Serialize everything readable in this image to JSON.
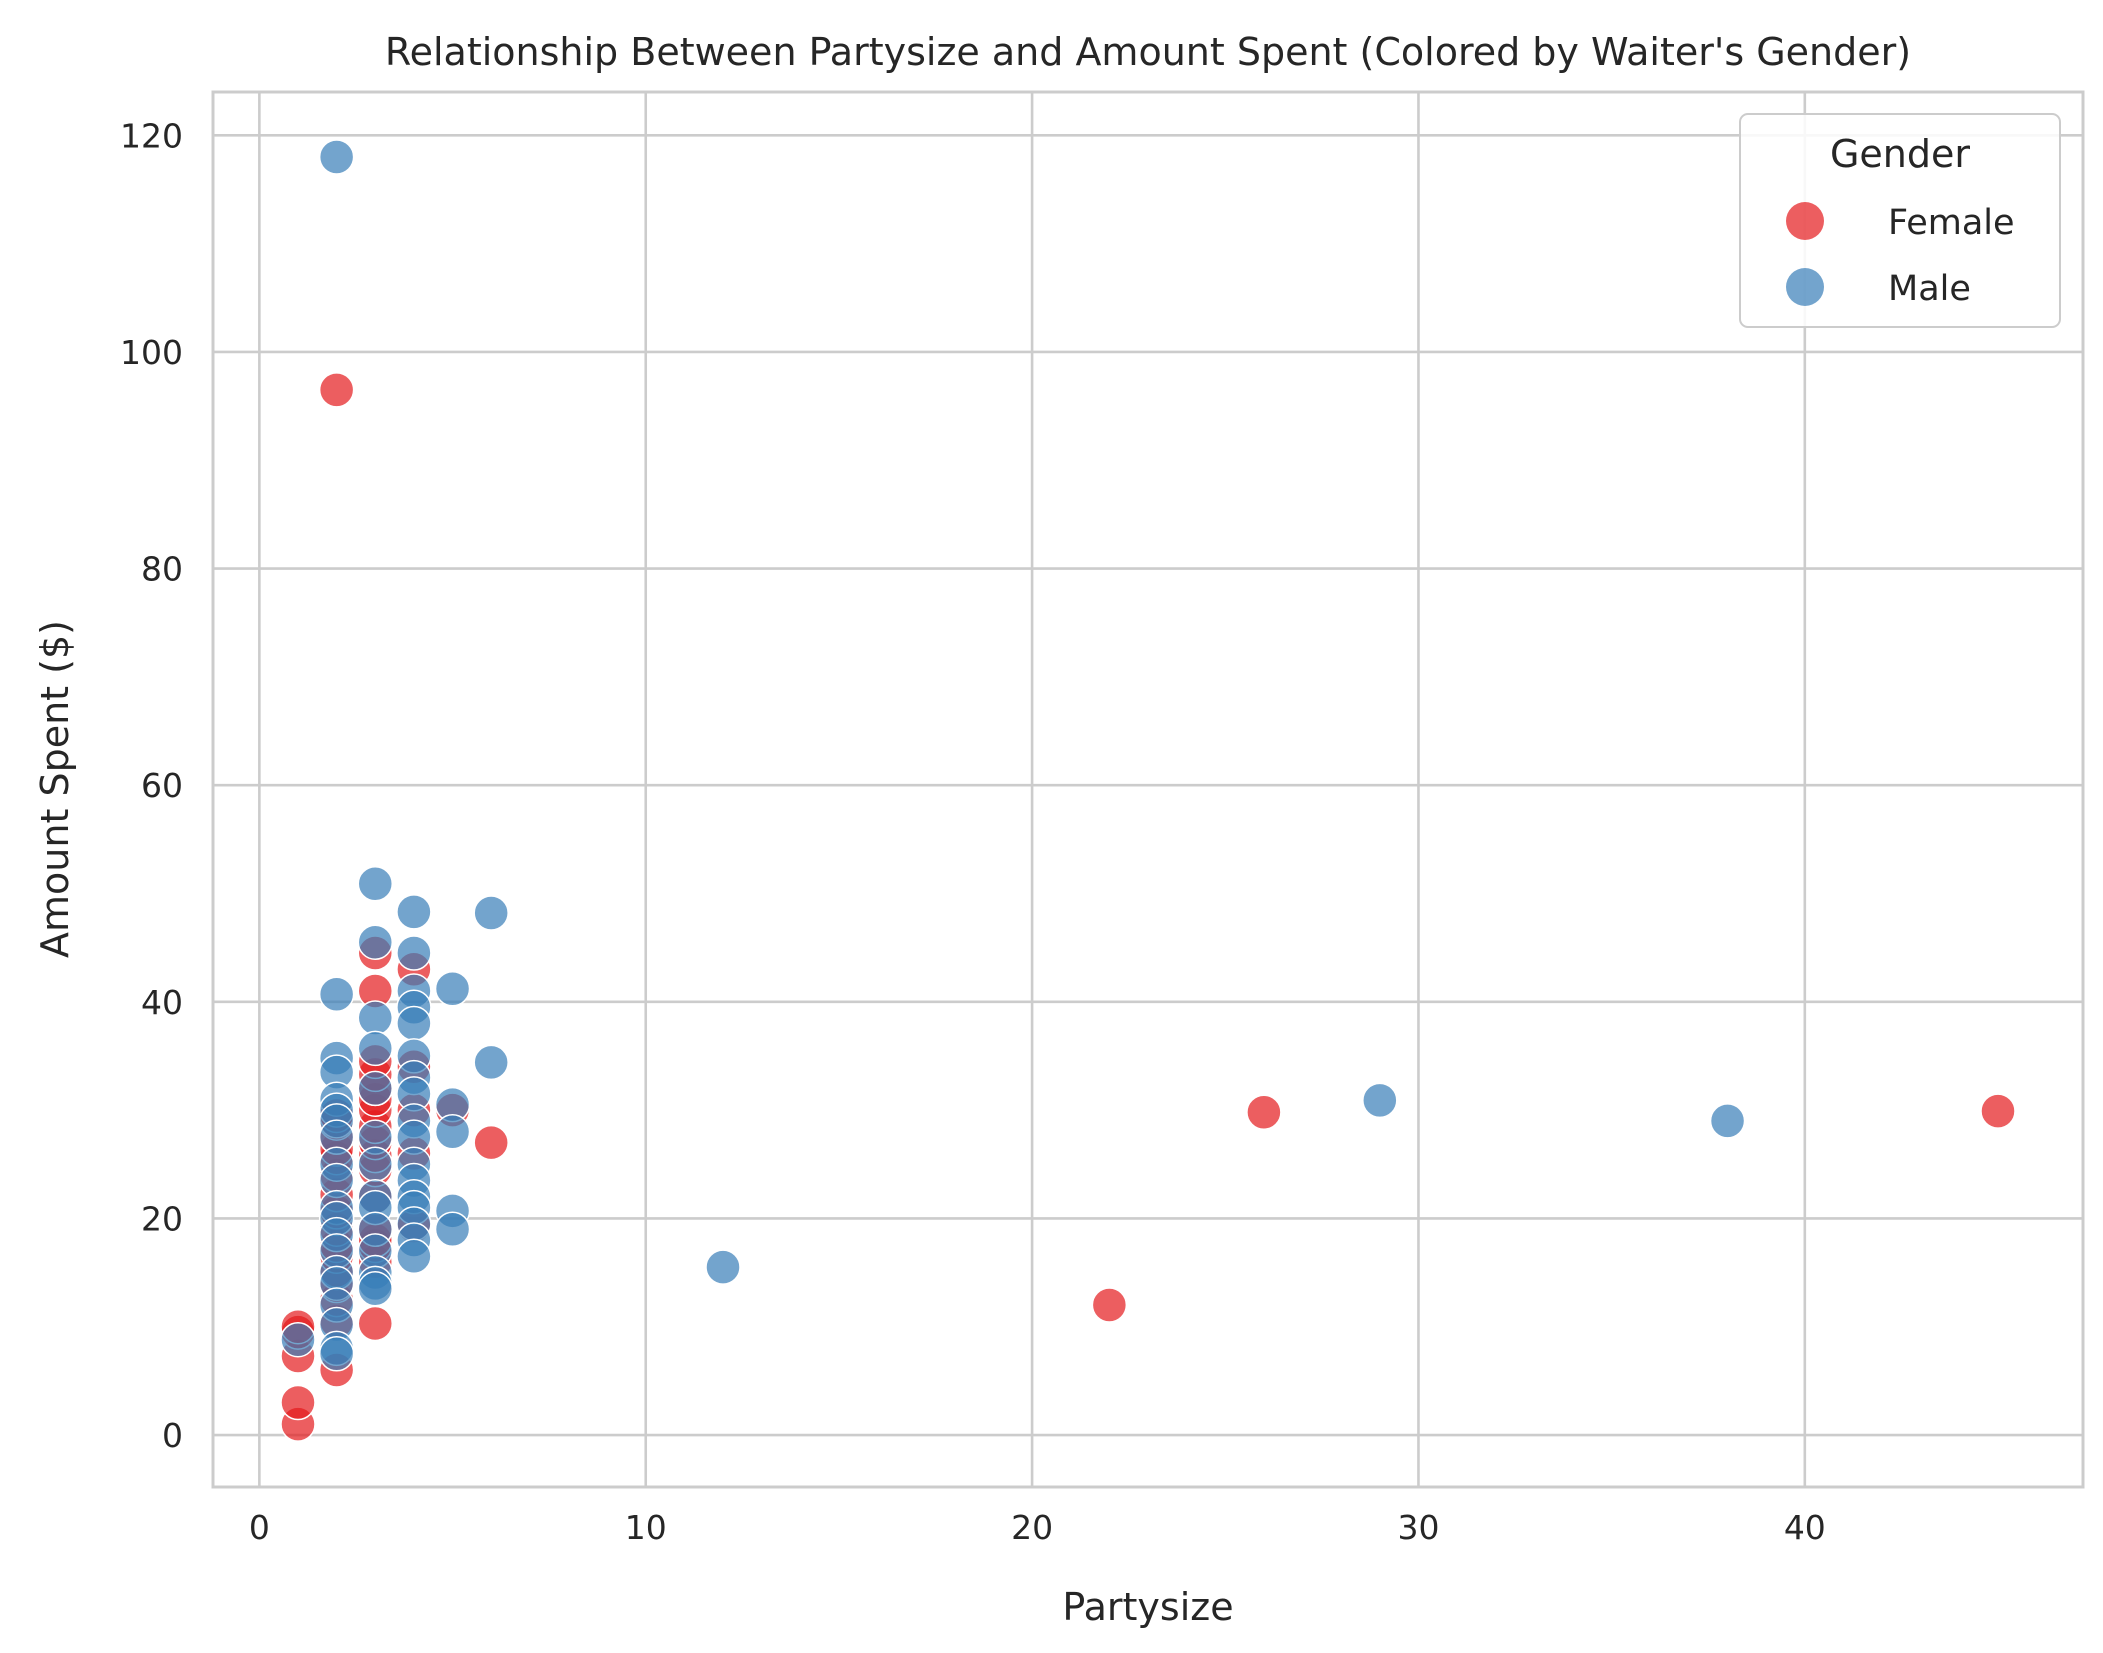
{
  "chart_data": {
    "type": "scatter",
    "title": "Relationship Between Partysize and Amount Spent (Colored by Waiter's Gender)",
    "xlabel": "Partysize",
    "ylabel": "Amount Spent ($)",
    "xlim": [
      -1.2,
      47.2
    ],
    "ylim": [
      -4.8,
      124
    ],
    "xticks": [
      0,
      10,
      20,
      30,
      40
    ],
    "yticks": [
      0,
      20,
      40,
      60,
      80,
      100,
      120
    ],
    "grid": true,
    "legend": {
      "title": "Gender",
      "position": "top-right"
    },
    "colors": {
      "Female": "#e41a1c",
      "Male": "#377eb8"
    },
    "marker_opacity": 0.7,
    "series": [
      {
        "name": "Female",
        "points": [
          [
            1,
            1.0
          ],
          [
            1,
            3.0
          ],
          [
            1,
            7.3
          ],
          [
            1,
            9.5
          ],
          [
            1,
            10.0
          ],
          [
            2,
            96.5
          ],
          [
            2,
            6.0
          ],
          [
            2,
            10.5
          ],
          [
            2,
            12.5
          ],
          [
            2,
            13.8
          ],
          [
            2,
            15.2
          ],
          [
            2,
            16.5
          ],
          [
            2,
            17.5
          ],
          [
            2,
            19.0
          ],
          [
            2,
            20.6
          ],
          [
            2,
            22.2
          ],
          [
            2,
            24.0
          ],
          [
            2,
            25.6
          ],
          [
            2,
            26.4
          ],
          [
            2,
            27.5
          ],
          [
            2,
            28.8
          ],
          [
            2,
            29.5
          ],
          [
            3,
            10.3
          ],
          [
            3,
            16.0
          ],
          [
            3,
            17.5
          ],
          [
            3,
            18.0
          ],
          [
            3,
            19.0
          ],
          [
            3,
            22.0
          ],
          [
            3,
            24.5
          ],
          [
            3,
            25.8
          ],
          [
            3,
            27.0
          ],
          [
            3,
            28.5
          ],
          [
            3,
            30.0
          ],
          [
            3,
            31.0
          ],
          [
            3,
            32.0
          ],
          [
            3,
            33.3
          ],
          [
            3,
            34.5
          ],
          [
            3,
            41.0
          ],
          [
            3,
            44.5
          ],
          [
            4,
            19.3
          ],
          [
            4,
            26.0
          ],
          [
            4,
            30.0
          ],
          [
            4,
            34.0
          ],
          [
            4,
            43.0
          ],
          [
            5,
            30.0
          ],
          [
            6,
            27.0
          ],
          [
            22,
            12.0
          ],
          [
            26,
            29.8
          ],
          [
            45,
            29.9
          ]
        ]
      },
      {
        "name": "Male",
        "points": [
          [
            1,
            8.8
          ],
          [
            2,
            118.0
          ],
          [
            2,
            40.7
          ],
          [
            2,
            34.8
          ],
          [
            2,
            33.5
          ],
          [
            2,
            31.0
          ],
          [
            2,
            30.0
          ],
          [
            2,
            29.0
          ],
          [
            2,
            27.5
          ],
          [
            2,
            25.0
          ],
          [
            2,
            23.5
          ],
          [
            2,
            21.0
          ],
          [
            2,
            20.0
          ],
          [
            2,
            18.5
          ],
          [
            2,
            17.0
          ],
          [
            2,
            15.0
          ],
          [
            2,
            14.0
          ],
          [
            2,
            12.0
          ],
          [
            2,
            10.2
          ],
          [
            2,
            8.0
          ],
          [
            2,
            7.5
          ],
          [
            3,
            50.9
          ],
          [
            3,
            45.5
          ],
          [
            3,
            38.5
          ],
          [
            3,
            35.7
          ],
          [
            3,
            32.0
          ],
          [
            3,
            27.5
          ],
          [
            3,
            25.0
          ],
          [
            3,
            22.0
          ],
          [
            3,
            21.0
          ],
          [
            3,
            19.0
          ],
          [
            3,
            17.0
          ],
          [
            3,
            15.0
          ],
          [
            3,
            14.0
          ],
          [
            3,
            13.5
          ],
          [
            4,
            48.3
          ],
          [
            4,
            44.5
          ],
          [
            4,
            41.0
          ],
          [
            4,
            39.5
          ],
          [
            4,
            38.0
          ],
          [
            4,
            35.0
          ],
          [
            4,
            33.0
          ],
          [
            4,
            31.5
          ],
          [
            4,
            29.0
          ],
          [
            4,
            27.5
          ],
          [
            4,
            25.0
          ],
          [
            4,
            23.5
          ],
          [
            4,
            22.0
          ],
          [
            4,
            21.0
          ],
          [
            4,
            19.5
          ],
          [
            4,
            18.0
          ],
          [
            4,
            16.5
          ],
          [
            5,
            41.2
          ],
          [
            5,
            30.5
          ],
          [
            5,
            28.0
          ],
          [
            5,
            20.7
          ],
          [
            5,
            19.0
          ],
          [
            6,
            48.2
          ],
          [
            6,
            34.4
          ],
          [
            12,
            15.5
          ],
          [
            29,
            30.9
          ],
          [
            38,
            29.0
          ]
        ]
      }
    ]
  }
}
